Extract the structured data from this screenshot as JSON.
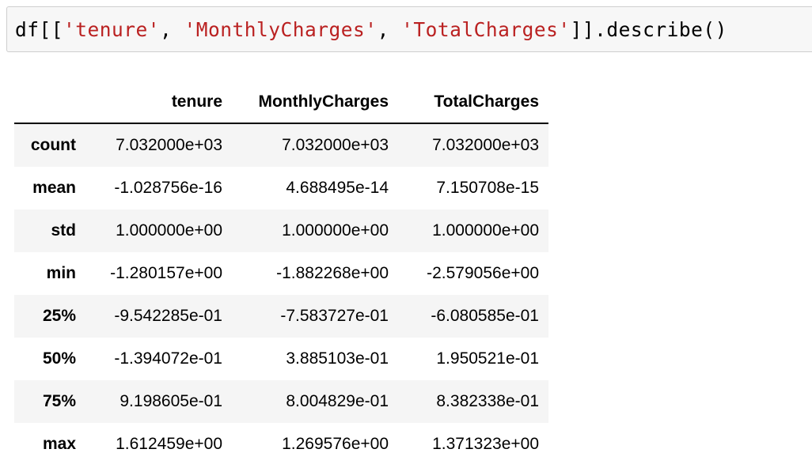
{
  "code_cell": {
    "tokens": [
      {
        "text": "df[[",
        "kind": "plain"
      },
      {
        "text": "'tenure'",
        "kind": "str"
      },
      {
        "text": ", ",
        "kind": "plain"
      },
      {
        "text": "'MonthlyCharges'",
        "kind": "str"
      },
      {
        "text": ", ",
        "kind": "plain"
      },
      {
        "text": "'TotalCharges'",
        "kind": "str"
      },
      {
        "text": "]].describe()",
        "kind": "plain"
      }
    ]
  },
  "table": {
    "columns": [
      "",
      "tenure",
      "MonthlyCharges",
      "TotalCharges"
    ],
    "rows": [
      {
        "index": "count",
        "values": [
          "7.032000e+03",
          "7.032000e+03",
          "7.032000e+03"
        ]
      },
      {
        "index": "mean",
        "values": [
          "-1.028756e-16",
          "4.688495e-14",
          "7.150708e-15"
        ]
      },
      {
        "index": "std",
        "values": [
          "1.000000e+00",
          "1.000000e+00",
          "1.000000e+00"
        ]
      },
      {
        "index": "min",
        "values": [
          "-1.280157e+00",
          "-1.882268e+00",
          "-2.579056e+00"
        ]
      },
      {
        "index": "25%",
        "values": [
          "-9.542285e-01",
          "-7.583727e-01",
          "-6.080585e-01"
        ]
      },
      {
        "index": "50%",
        "values": [
          "-1.394072e-01",
          "3.885103e-01",
          "1.950521e-01"
        ]
      },
      {
        "index": "75%",
        "values": [
          "9.198605e-01",
          "8.004829e-01",
          "8.382338e-01"
        ]
      },
      {
        "index": "max",
        "values": [
          "1.612459e+00",
          "1.269576e+00",
          "1.371323e+00"
        ]
      }
    ]
  },
  "colors": {
    "string_literal": "#ba2121",
    "code_background": "#f7f7f7",
    "code_border": "#cfcfcf",
    "stripe": "#f5f5f5"
  }
}
